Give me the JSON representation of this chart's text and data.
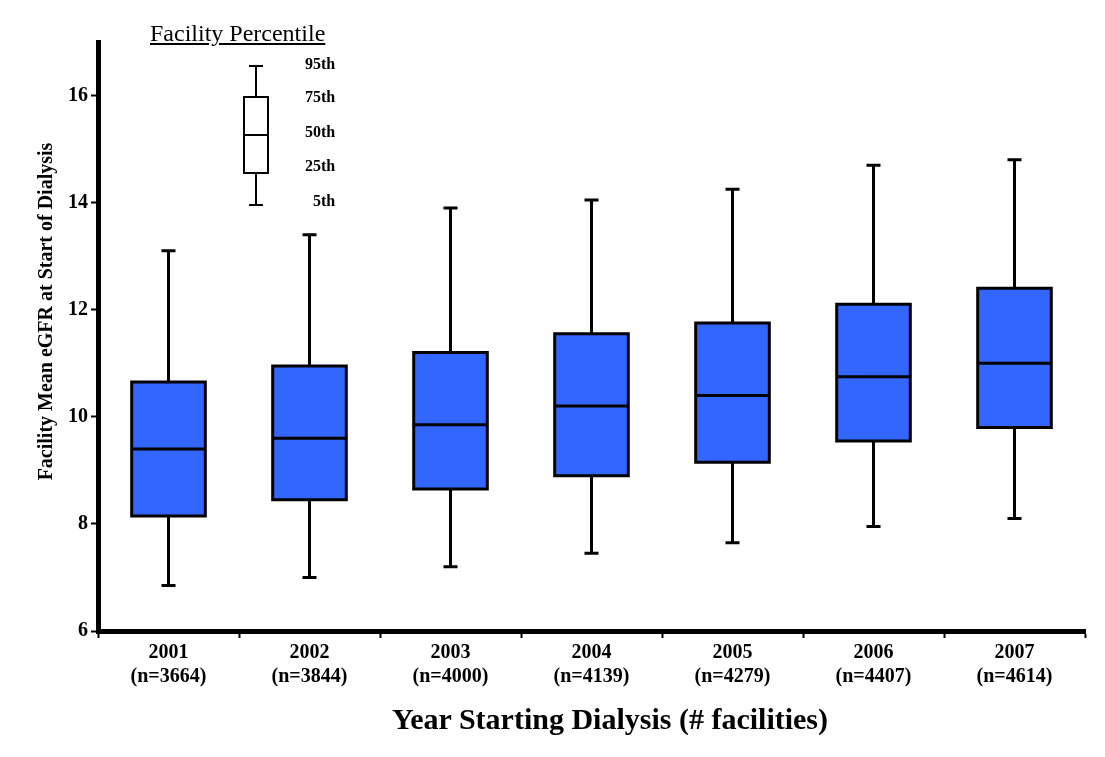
{
  "chart_data": {
    "type": "box",
    "xlabel": "Year Starting Dialysis (# facilities)",
    "ylabel": "Facility Mean eGFR at Start of Dialysis",
    "legend_title": "Facility Percentile",
    "annotations": [
      "95th",
      "75th",
      "50th",
      "25th",
      "5th"
    ],
    "categories": [
      "2001\n(n=3664)",
      "2002\n(n=3844)",
      "2003\n(n=4000)",
      "2004\n(n=4139)",
      "2005\n(n=4279)",
      "2006\n(n=4407)",
      "2007\n(n=4614)"
    ],
    "color": "#3366ff",
    "boxes": [
      {
        "low": 6.85,
        "q1": 8.15,
        "median": 9.4,
        "q3": 10.65,
        "high": 13.1
      },
      {
        "low": 7.0,
        "q1": 8.45,
        "median": 9.6,
        "q3": 10.95,
        "high": 13.4
      },
      {
        "low": 7.2,
        "q1": 8.65,
        "median": 9.85,
        "q3": 11.2,
        "high": 13.9
      },
      {
        "low": 7.45,
        "q1": 8.9,
        "median": 10.2,
        "q3": 11.55,
        "high": 14.05
      },
      {
        "low": 7.65,
        "q1": 9.15,
        "median": 10.4,
        "q3": 11.75,
        "high": 14.25
      },
      {
        "low": 7.95,
        "q1": 9.55,
        "median": 10.75,
        "q3": 12.1,
        "high": 14.7
      },
      {
        "low": 8.1,
        "q1": 9.8,
        "median": 11.0,
        "q3": 12.4,
        "high": 14.8
      }
    ],
    "ylim": [
      6,
      17
    ],
    "yticks": [
      6,
      8,
      10,
      12,
      14,
      16
    ],
    "grid": false
  }
}
